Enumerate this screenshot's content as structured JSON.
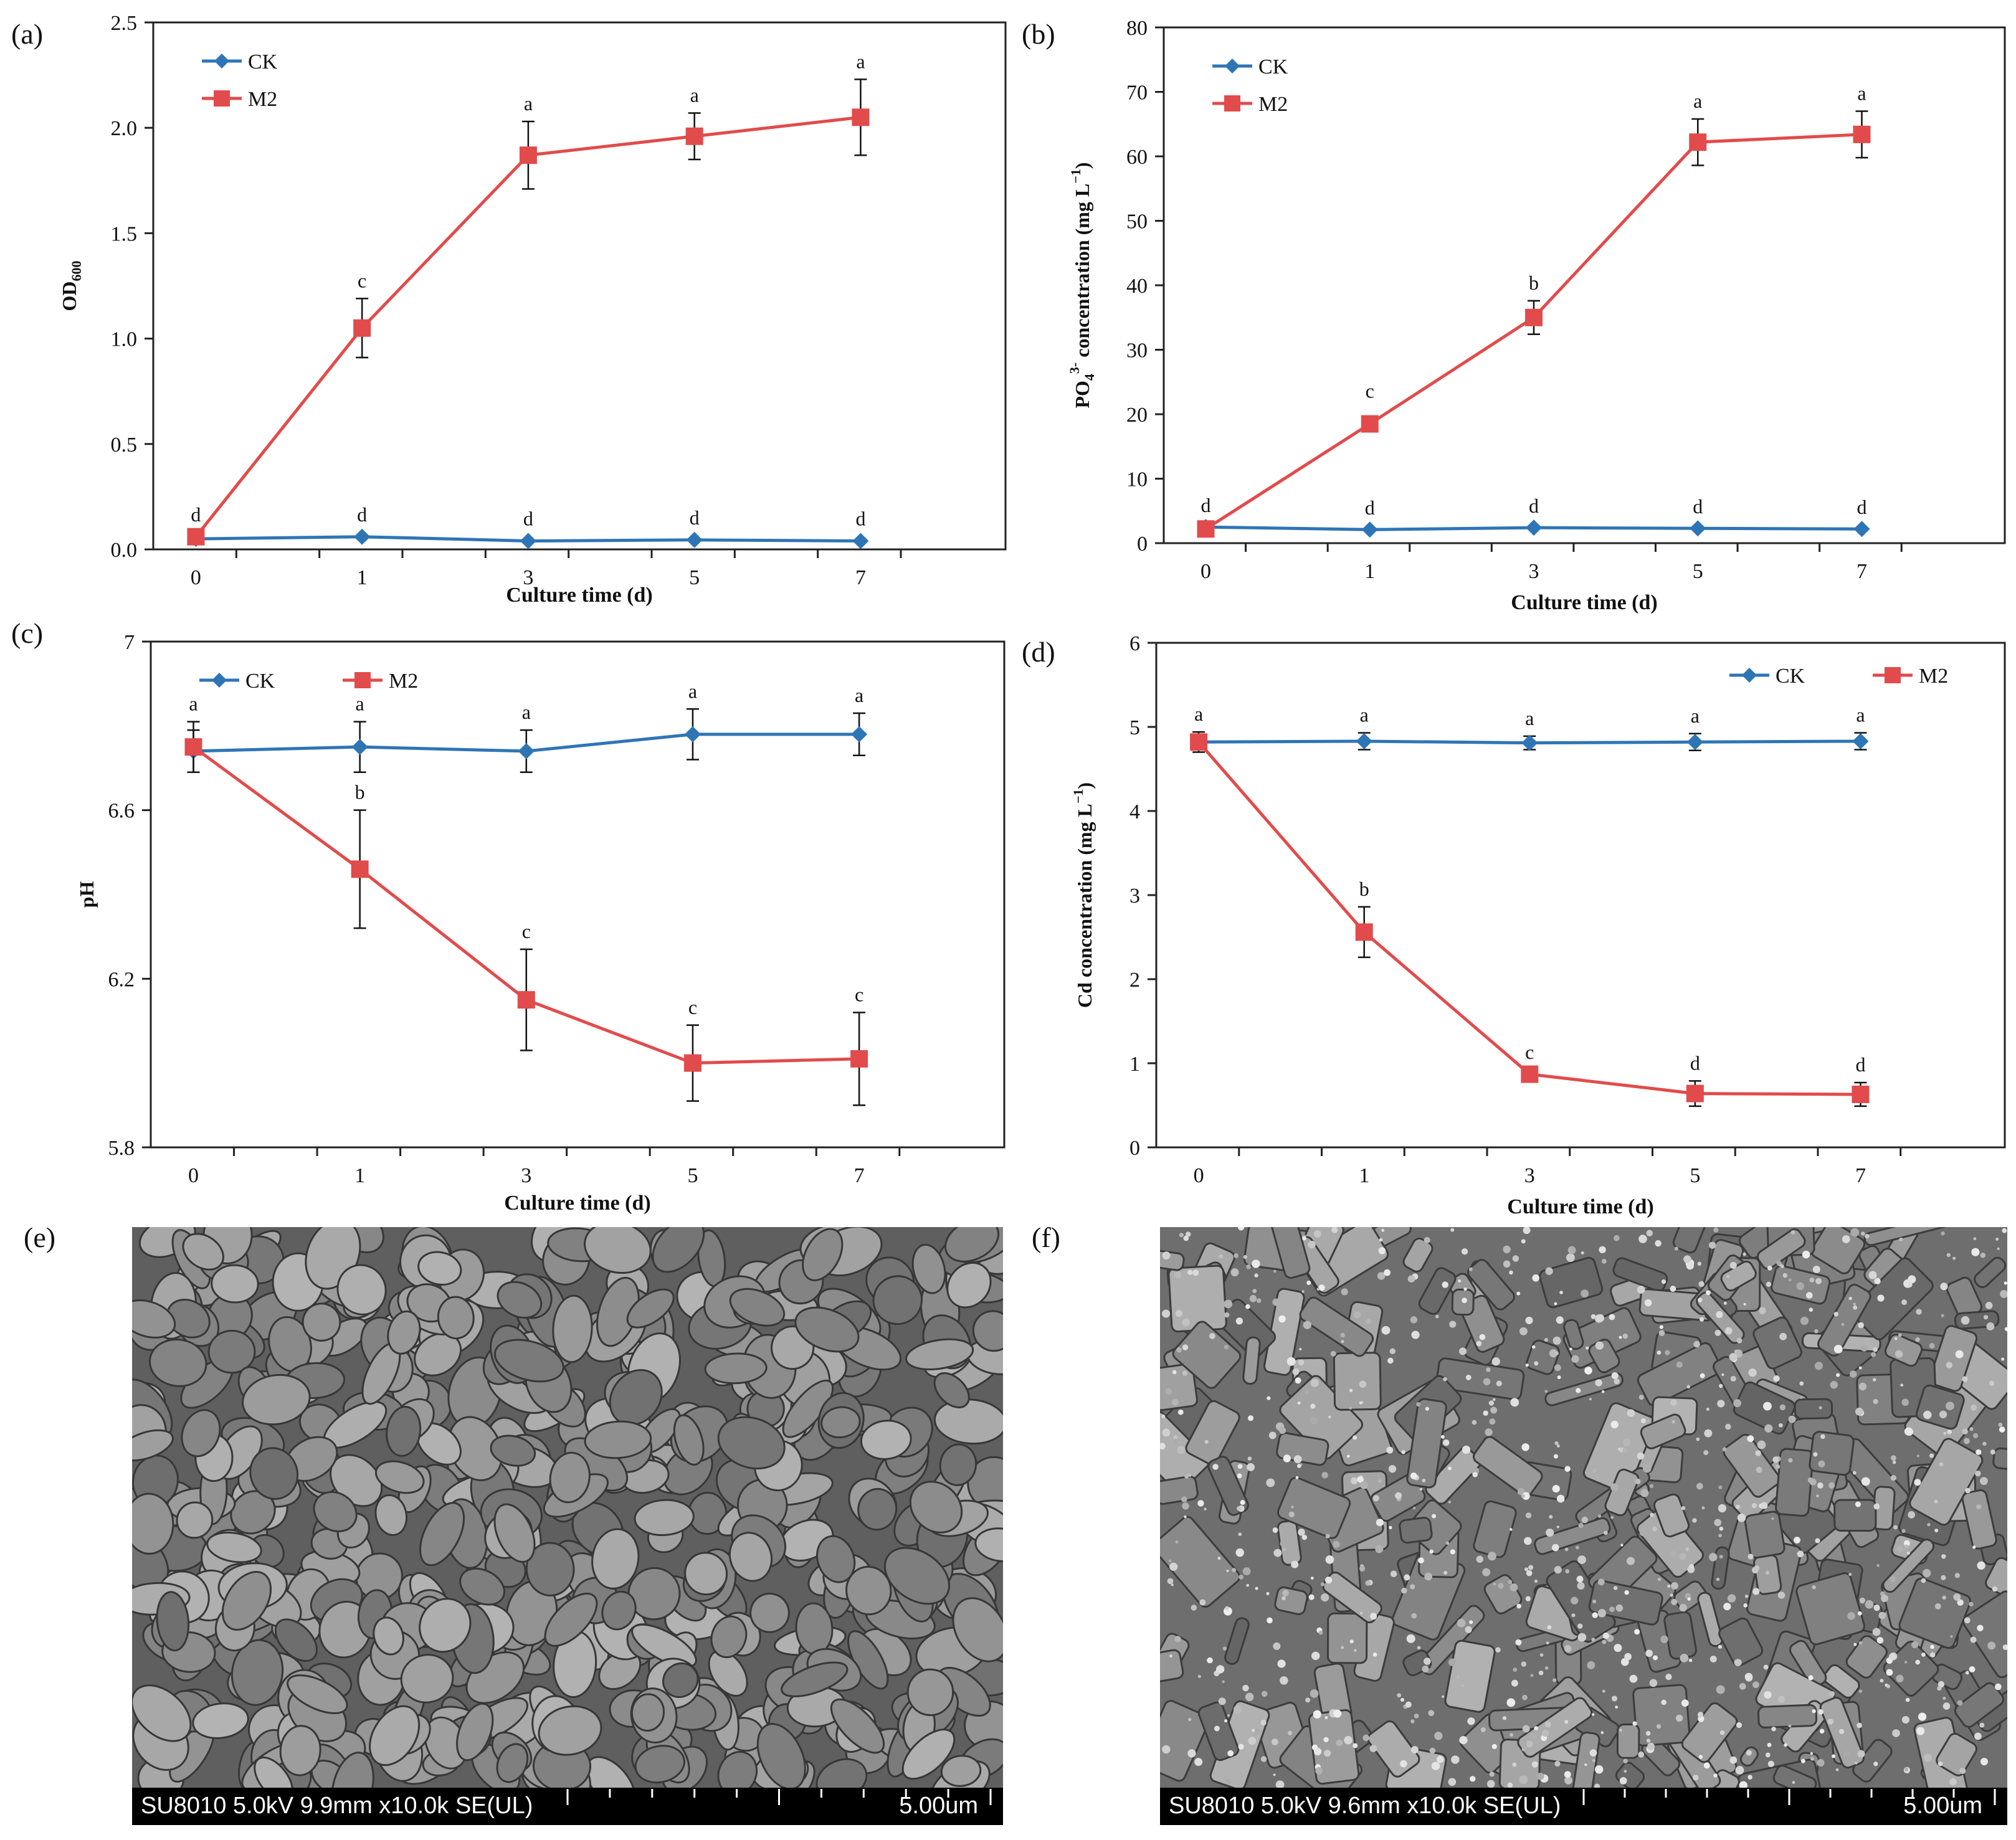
{
  "figure": {
    "colors": {
      "CK": "#2e75b6",
      "M2": "#e24b4b",
      "axis": "#222222",
      "sem_base": "#7a7a7a"
    },
    "panels": [
      {
        "label": "(a)",
        "chart_data": {
          "type": "line",
          "title": "",
          "xlabel": "Culture time (d)",
          "ylabel_main": "OD",
          "ylabel_sub": "600",
          "categories": [
            "0",
            "1",
            "3",
            "5",
            "7"
          ],
          "ylim": [
            0,
            2.5
          ],
          "yticks": [
            "0.0",
            "0.5",
            "1.0",
            "1.5",
            "2.0",
            "2.5"
          ],
          "yticks_values": [
            0,
            0.5,
            1.0,
            1.5,
            2.0,
            2.5
          ],
          "legend": {
            "position": "top-left",
            "layout": "vertical"
          },
          "series": [
            {
              "name": "CK",
              "marker": "diamond",
              "values": [
                0.05,
                0.06,
                0.04,
                0.045,
                0.04
              ],
              "errors": [
                0,
                0,
                0,
                0,
                0
              ],
              "labels": []
            },
            {
              "name": "M2",
              "marker": "square",
              "values": [
                0.06,
                1.05,
                1.87,
                1.96,
                2.05
              ],
              "errors": [
                0,
                0.14,
                0.16,
                0.11,
                0.18
              ],
              "labels": []
            }
          ],
          "sig_labels": [
            "d",
            "c",
            "a",
            "a",
            "a",
            "d",
            "d",
            "d",
            "d"
          ],
          "sig_values": [
            0.06,
            1.05,
            1.87,
            1.96,
            2.05,
            0.06,
            0.04,
            0.045,
            0.04
          ],
          "sig_offsets": [
            0.02,
            0.14,
            0.16,
            0.11,
            0.18,
            0.02,
            0.02,
            0.02,
            0.02
          ],
          "sig_cats": [
            0,
            1,
            2,
            3,
            4,
            1,
            2,
            3,
            4
          ]
        }
      },
      {
        "label": "(b)",
        "chart_data": {
          "type": "line",
          "title": "",
          "xlabel": "Culture time (d)",
          "ylabel_main": "PO",
          "ylabel_sub": "4",
          "ylabel_sup": "3-",
          "ylabel_rest": " concentration (mg L",
          "ylabel_rest_sup": "−1",
          "ylabel_close": ")",
          "categories": [
            "0",
            "1",
            "3",
            "5",
            "7"
          ],
          "ylim": [
            0,
            80
          ],
          "yticks": [
            "0",
            "10",
            "20",
            "30",
            "40",
            "50",
            "60",
            "70",
            "80"
          ],
          "yticks_values": [
            0,
            10,
            20,
            30,
            40,
            50,
            60,
            70,
            80
          ],
          "legend": {
            "position": "top-left",
            "layout": "vertical"
          },
          "series": [
            {
              "name": "CK",
              "marker": "diamond",
              "values": [
                2.5,
                2.1,
                2.4,
                2.3,
                2.2
              ],
              "errors": [
                0,
                0,
                0,
                0,
                0
              ]
            },
            {
              "name": "M2",
              "marker": "square",
              "values": [
                2.2,
                18.5,
                35,
                62.2,
                63.4
              ],
              "errors": [
                0,
                0,
                2.6,
                3.6,
                3.6
              ]
            }
          ],
          "sig_labels": [
            "d",
            "c",
            "b",
            "a",
            "a",
            "d",
            "d",
            "d",
            "d"
          ],
          "sig_values": [
            2.5,
            18.5,
            35,
            62.2,
            63.4,
            2.1,
            2.4,
            2.3,
            2.2
          ],
          "sig_offsets": [
            0.6,
            2.3,
            2.6,
            3.6,
            3.6,
            0.6,
            0.6,
            0.6,
            0.6
          ],
          "sig_cats": [
            0,
            1,
            2,
            3,
            4,
            1,
            2,
            3,
            4
          ]
        }
      },
      {
        "label": "(c)",
        "chart_data": {
          "type": "line",
          "title": "",
          "xlabel": "Culture time (d)",
          "ylabel_main": "pH",
          "categories": [
            "0",
            "1",
            "3",
            "5",
            "7"
          ],
          "ylim": [
            5.8,
            7.0
          ],
          "yticks": [
            "5.8",
            "6.2",
            "6.6",
            "7"
          ],
          "yticks_values": [
            5.8,
            6.2,
            6.6,
            7.0
          ],
          "legend": {
            "position": "top-left",
            "layout": "horizontal"
          },
          "series": [
            {
              "name": "CK",
              "marker": "diamond",
              "values": [
                6.74,
                6.75,
                6.74,
                6.78,
                6.78
              ],
              "errors": [
                0.05,
                0.06,
                0.05,
                0.06,
                0.05
              ]
            },
            {
              "name": "M2",
              "marker": "square",
              "values": [
                6.75,
                6.46,
                6.15,
                6.0,
                6.01
              ],
              "errors": [
                0.06,
                0.14,
                0.12,
                0.09,
                0.11
              ]
            }
          ],
          "sig_labels": [
            "a",
            "a",
            "a",
            "a",
            "a",
            "b",
            "c",
            "c",
            "c"
          ],
          "sig_values": [
            6.75,
            6.75,
            6.74,
            6.78,
            6.78,
            6.46,
            6.15,
            6.0,
            6.01
          ],
          "sig_offsets": [
            0.06,
            0.06,
            0.05,
            0.06,
            0.05,
            0.14,
            0.12,
            0.09,
            0.11
          ],
          "sig_cats": [
            0,
            1,
            2,
            3,
            4,
            1,
            2,
            3,
            4
          ]
        }
      },
      {
        "label": "(d)",
        "chart_data": {
          "type": "line",
          "title": "",
          "xlabel": "Culture time (d)",
          "ylabel_main": "Cd concentration (mg L",
          "ylabel_rest_sup": "−1",
          "ylabel_close": ")",
          "categories": [
            "0",
            "1",
            "3",
            "5",
            "7"
          ],
          "ylim": [
            0,
            6
          ],
          "yticks": [
            "0",
            "1",
            "2",
            "3",
            "4",
            "5",
            "6"
          ],
          "yticks_values": [
            0,
            1,
            2,
            3,
            4,
            5,
            6
          ],
          "legend": {
            "position": "top-right",
            "layout": "horizontal"
          },
          "series": [
            {
              "name": "CK",
              "marker": "diamond",
              "values": [
                4.82,
                4.83,
                4.81,
                4.82,
                4.83
              ],
              "errors": [
                0.08,
                0.1,
                0.08,
                0.1,
                0.1
              ]
            },
            {
              "name": "M2",
              "marker": "square",
              "values": [
                4.82,
                2.56,
                0.87,
                0.64,
                0.63
              ],
              "errors": [
                0.12,
                0.3,
                0.05,
                0.15,
                0.14
              ]
            }
          ],
          "sig_labels": [
            "a",
            "a",
            "a",
            "a",
            "a",
            "b",
            "c",
            "d",
            "d"
          ],
          "sig_values": [
            4.82,
            4.83,
            4.81,
            4.82,
            4.83,
            2.56,
            0.87,
            0.64,
            0.63
          ],
          "sig_offsets": [
            0.12,
            0.1,
            0.08,
            0.1,
            0.1,
            0.3,
            0.05,
            0.15,
            0.14
          ],
          "sig_cats": [
            0,
            1,
            2,
            3,
            4,
            1,
            2,
            3,
            4
          ]
        }
      }
    ],
    "sem": [
      {
        "label": "(e)",
        "info": "SU8010 5.0kV 9.9mm x10.0k SE(UL)",
        "scale": "5.00um",
        "texture": "rounded-cells"
      },
      {
        "label": "(f)",
        "info": "SU8010 5.0kV 9.6mm x10.0k SE(UL)",
        "scale": "5.00um",
        "texture": "crystalline-aggregates"
      }
    ]
  }
}
